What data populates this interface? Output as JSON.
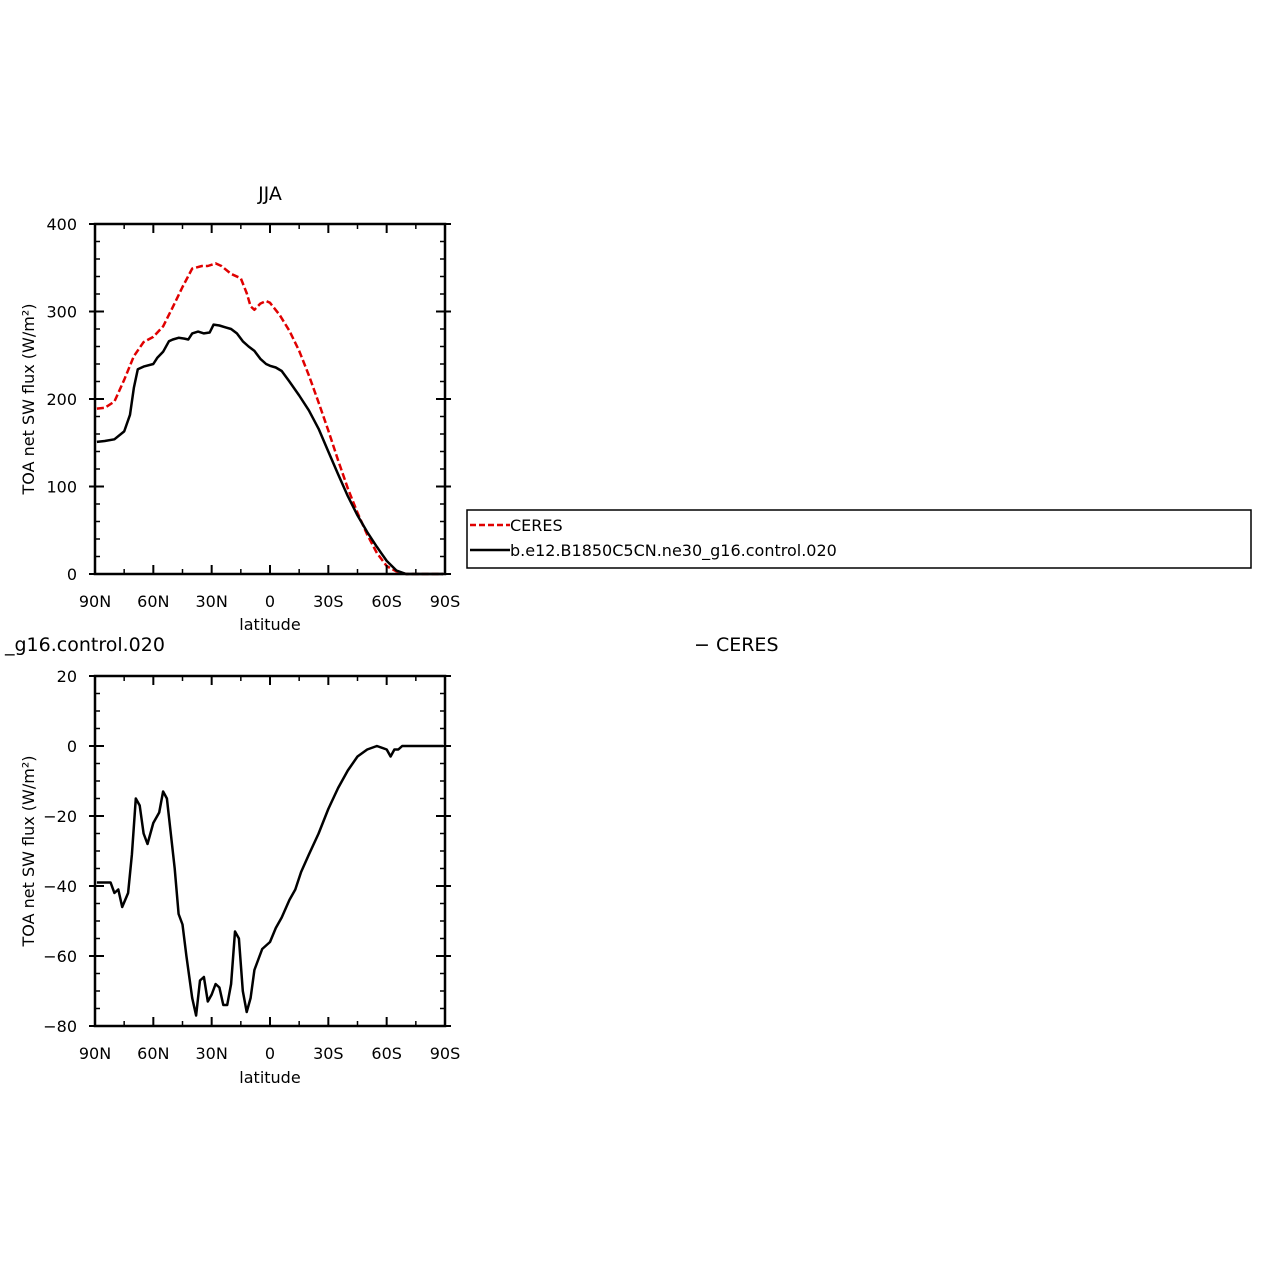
{
  "chart_data": [
    {
      "type": "line",
      "title": "JJA",
      "xlabel": "latitude",
      "ylabel": "TOA net SW flux (W/m²)",
      "xlim": [
        90,
        -90
      ],
      "ylim": [
        0,
        400
      ],
      "xticks": [
        90,
        60,
        30,
        0,
        -30,
        -60,
        -90
      ],
      "xtick_labels": [
        "90N",
        "60N",
        "30N",
        "0",
        "30S",
        "60S",
        "90S"
      ],
      "yticks": [
        0,
        100,
        200,
        300,
        400
      ],
      "ytick_labels": [
        "0",
        "100",
        "200",
        "300",
        "400"
      ],
      "grid": false,
      "legend_position": "right",
      "series": [
        {
          "name": "CERES",
          "color": "#e00000",
          "style": "dashed",
          "x": [
            89,
            85,
            80,
            75,
            70,
            65,
            60,
            55,
            50,
            45,
            40,
            35,
            32,
            28,
            25,
            20,
            15,
            12,
            10,
            8,
            5,
            2,
            0,
            -5,
            -10,
            -15,
            -20,
            -25,
            -30,
            -35,
            -40,
            -45,
            -50,
            -55,
            -60,
            -65,
            -70,
            -75,
            -80,
            -85,
            -89
          ],
          "y": [
            189,
            190,
            197,
            222,
            249,
            265,
            271,
            283,
            305,
            328,
            349,
            352,
            352,
            355,
            352,
            343,
            338,
            321,
            306,
            302,
            309,
            312,
            310,
            296,
            278,
            255,
            227,
            196,
            164,
            130,
            98,
            70,
            45,
            24,
            9,
            3,
            0,
            0,
            0,
            0,
            0
          ]
        },
        {
          "name": "b.e12.B1850C5CN.ne30_g16.control.020",
          "color": "#000000",
          "style": "solid",
          "x": [
            89,
            85,
            80,
            75,
            72,
            70,
            68,
            65,
            60,
            58,
            55,
            52,
            50,
            47,
            44,
            42,
            40,
            37,
            34,
            31,
            29,
            26,
            23,
            20,
            17,
            14,
            11,
            8,
            5,
            2,
            0,
            -3,
            -6,
            -10,
            -15,
            -20,
            -25,
            -30,
            -35,
            -40,
            -45,
            -50,
            -55,
            -60,
            -65,
            -70,
            -75,
            -80,
            -85,
            -89
          ],
          "y": [
            151,
            152,
            154,
            163,
            182,
            213,
            234,
            237,
            240,
            247,
            254,
            266,
            268,
            270,
            269,
            268,
            275,
            277,
            275,
            276,
            285,
            284,
            282,
            280,
            275,
            266,
            260,
            255,
            246,
            240,
            238,
            236,
            232,
            220,
            204,
            187,
            166,
            140,
            114,
            89,
            67,
            48,
            31,
            15,
            4,
            0,
            0,
            0,
            0,
            0
          ]
        }
      ]
    },
    {
      "type": "line",
      "title": "_g16.control.020",
      "title_right": "− CERES",
      "xlabel": "latitude",
      "ylabel": "TOA net SW flux (W/m²)",
      "xlim": [
        90,
        -90
      ],
      "ylim": [
        -80,
        20
      ],
      "xticks": [
        90,
        60,
        30,
        0,
        -30,
        -60,
        -90
      ],
      "xtick_labels": [
        "90N",
        "60N",
        "30N",
        "0",
        "30S",
        "60S",
        "90S"
      ],
      "yticks": [
        -80,
        -60,
        -40,
        -20,
        0,
        20
      ],
      "ytick_labels": [
        "−80",
        "−60",
        "−40",
        "−20",
        "0",
        "20"
      ],
      "grid": false,
      "series": [
        {
          "color": "#000000",
          "style": "solid",
          "x": [
            89,
            85,
            82,
            80,
            78,
            76,
            73,
            71,
            69,
            67,
            65,
            63,
            60,
            57,
            55,
            53,
            51,
            49,
            47,
            45,
            43,
            40,
            38,
            36,
            34,
            32,
            30,
            28,
            26,
            24,
            22,
            20,
            18,
            16,
            14,
            12,
            10,
            8,
            6,
            4,
            2,
            0,
            -3,
            -6,
            -10,
            -13,
            -16,
            -20,
            -25,
            -30,
            -35,
            -40,
            -45,
            -50,
            -55,
            -60,
            -62,
            -64,
            -66,
            -68,
            -70,
            -72,
            -75,
            -80,
            -85,
            -89
          ],
          "y": [
            -39,
            -39,
            -39,
            -42,
            -41,
            -46,
            -42,
            -31,
            -15,
            -17,
            -25,
            -28,
            -22,
            -19,
            -13,
            -15,
            -25,
            -35,
            -48,
            -51,
            -60,
            -72,
            -77,
            -67,
            -66,
            -73,
            -71,
            -68,
            -69,
            -74,
            -74,
            -68,
            -53,
            -55,
            -70,
            -76,
            -72,
            -64,
            -61,
            -58,
            -57,
            -56,
            -52,
            -49,
            -44,
            -41,
            -36,
            -31,
            -25,
            -18,
            -12,
            -7,
            -3,
            -1,
            0,
            -1,
            -3,
            -1,
            -1,
            0,
            0,
            0,
            0,
            0,
            0,
            0
          ]
        }
      ]
    }
  ],
  "legend": {
    "items": [
      {
        "label": "CERES",
        "color": "#e00000",
        "style": "dashed"
      },
      {
        "label": "b.e12.B1850C5CN.ne30_g16.control.020",
        "color": "#000000",
        "style": "solid"
      }
    ]
  }
}
